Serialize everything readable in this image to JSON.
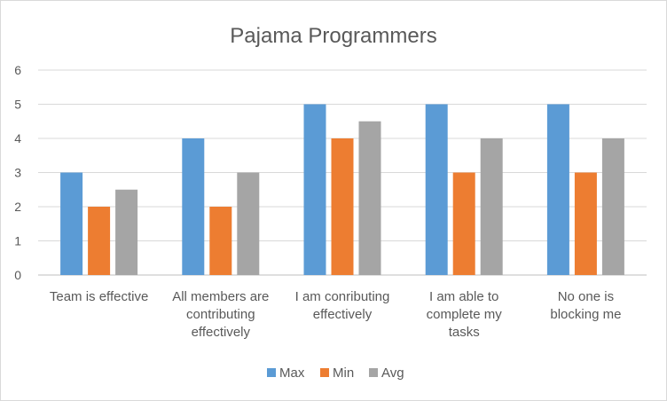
{
  "chart_data": {
    "type": "bar",
    "title": "Pajama Programmers",
    "xlabel": "",
    "ylabel": "",
    "ylim": [
      0,
      6
    ],
    "yticks": [
      0,
      1,
      2,
      3,
      4,
      5,
      6
    ],
    "grid": true,
    "legend_position": "bottom",
    "categories": [
      [
        "Team is effective"
      ],
      [
        "All members are",
        "contributing",
        "effectively"
      ],
      [
        "I am conributing",
        "effectively"
      ],
      [
        "I am able to",
        "complete my",
        "tasks"
      ],
      [
        "No one is",
        "blocking me"
      ]
    ],
    "series": [
      {
        "name": "Max",
        "color": "#5b9bd5",
        "values": [
          3,
          4,
          5,
          5,
          5
        ]
      },
      {
        "name": "Min",
        "color": "#ed7d31",
        "values": [
          2,
          2,
          4,
          3,
          3
        ]
      },
      {
        "name": "Avg",
        "color": "#a5a5a5",
        "values": [
          2.5,
          3,
          4.5,
          4,
          4
        ]
      }
    ]
  }
}
